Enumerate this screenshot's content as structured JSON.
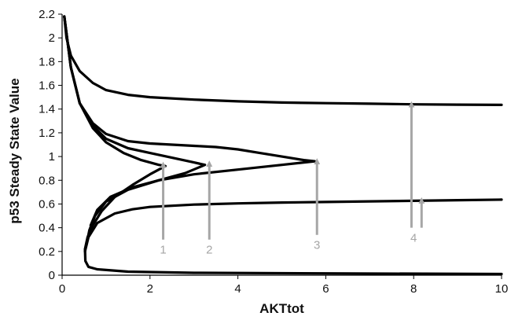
{
  "chart_data": {
    "type": "line",
    "title": "",
    "xlabel": "AKTtot",
    "ylabel": "p53 Steady State Value",
    "xlim": [
      0,
      10
    ],
    "ylim": [
      0,
      2.2
    ],
    "x_ticks": [
      "0",
      "2",
      "4",
      "6",
      "8",
      "10"
    ],
    "y_ticks": [
      "0",
      "0.2",
      "0.4",
      "0.6",
      "0.8",
      "1",
      "1.2",
      "1.4",
      "1.6",
      "1.8",
      "2",
      "2.2"
    ],
    "grid": false,
    "legend": "none",
    "line_color": "#000000",
    "annotation_color": "#a6a6a6",
    "series": [
      {
        "points": [
          [
            0.05,
            2.18
          ],
          [
            0.1,
            2.0
          ],
          [
            0.2,
            1.85
          ],
          [
            0.4,
            1.72
          ],
          [
            0.7,
            1.62
          ],
          [
            1.0,
            1.56
          ],
          [
            1.5,
            1.52
          ],
          [
            2.0,
            1.5
          ],
          [
            3.0,
            1.48
          ],
          [
            4.0,
            1.465
          ],
          [
            5.0,
            1.455
          ],
          [
            6.0,
            1.45
          ],
          [
            7.0,
            1.445
          ],
          [
            8.0,
            1.44
          ],
          [
            9.0,
            1.437
          ],
          [
            10.0,
            1.435
          ]
        ]
      },
      {
        "points": [
          [
            0.05,
            2.18
          ],
          [
            0.2,
            1.75
          ],
          [
            0.4,
            1.45
          ],
          [
            0.7,
            1.24
          ],
          [
            1.0,
            1.12
          ],
          [
            1.4,
            1.03
          ],
          [
            1.8,
            0.97
          ],
          [
            2.2,
            0.93
          ],
          [
            2.35,
            0.92
          ],
          [
            2.0,
            0.85
          ],
          [
            1.6,
            0.76
          ],
          [
            1.2,
            0.66
          ],
          [
            0.9,
            0.54
          ],
          [
            0.7,
            0.42
          ],
          [
            0.58,
            0.32
          ],
          [
            0.52,
            0.22
          ],
          [
            0.53,
            0.12
          ],
          [
            0.6,
            0.07
          ],
          [
            0.8,
            0.05
          ],
          [
            1.5,
            0.03
          ],
          [
            3.0,
            0.02
          ],
          [
            6.0,
            0.015
          ],
          [
            10.0,
            0.01
          ]
        ]
      },
      {
        "points": [
          [
            0.05,
            2.18
          ],
          [
            0.2,
            1.75
          ],
          [
            0.4,
            1.45
          ],
          [
            0.7,
            1.26
          ],
          [
            1.0,
            1.15
          ],
          [
            1.5,
            1.07
          ],
          [
            2.0,
            1.03
          ],
          [
            2.5,
            0.99
          ],
          [
            3.0,
            0.95
          ],
          [
            3.25,
            0.93
          ],
          [
            2.8,
            0.86
          ],
          [
            2.2,
            0.8
          ],
          [
            1.6,
            0.74
          ],
          [
            1.1,
            0.66
          ],
          [
            0.8,
            0.55
          ],
          [
            0.65,
            0.42
          ]
        ]
      },
      {
        "points": [
          [
            0.05,
            2.18
          ],
          [
            0.2,
            1.75
          ],
          [
            0.4,
            1.45
          ],
          [
            0.7,
            1.28
          ],
          [
            1.0,
            1.19
          ],
          [
            1.5,
            1.13
          ],
          [
            2.0,
            1.11
          ],
          [
            2.5,
            1.1
          ],
          [
            3.0,
            1.09
          ],
          [
            3.5,
            1.08
          ],
          [
            4.0,
            1.06
          ],
          [
            4.5,
            1.03
          ],
          [
            5.0,
            1.0
          ],
          [
            5.5,
            0.97
          ],
          [
            5.75,
            0.96
          ],
          [
            5.0,
            0.93
          ],
          [
            4.0,
            0.89
          ],
          [
            3.0,
            0.85
          ],
          [
            2.2,
            0.8
          ],
          [
            1.5,
            0.72
          ],
          [
            1.0,
            0.62
          ],
          [
            0.75,
            0.5
          ],
          [
            0.62,
            0.38
          ],
          [
            0.55,
            0.25
          ]
        ]
      },
      {
        "points": [
          [
            0.52,
            0.2
          ],
          [
            0.6,
            0.32
          ],
          [
            0.8,
            0.44
          ],
          [
            1.2,
            0.52
          ],
          [
            1.6,
            0.555
          ],
          [
            2.0,
            0.575
          ],
          [
            3.0,
            0.595
          ],
          [
            4.0,
            0.605
          ],
          [
            5.0,
            0.612
          ],
          [
            6.0,
            0.617
          ],
          [
            7.0,
            0.622
          ],
          [
            8.0,
            0.627
          ],
          [
            9.0,
            0.632
          ],
          [
            10.0,
            0.637
          ]
        ]
      }
    ],
    "annotations": [
      {
        "label": "1",
        "x": 2.3,
        "y_from": 0.3,
        "y_to": 0.93
      },
      {
        "label": "2",
        "x": 3.35,
        "y_from": 0.3,
        "y_to": 0.94
      },
      {
        "label": "3",
        "x": 5.8,
        "y_from": 0.34,
        "y_to": 0.96
      },
      {
        "label": "4",
        "x": 7.95,
        "y_from": 0.4,
        "y_to": 1.44,
        "x_label": 8.0
      },
      {
        "label": "",
        "x": 8.18,
        "y_from": 0.4,
        "y_to": 0.63
      }
    ]
  }
}
